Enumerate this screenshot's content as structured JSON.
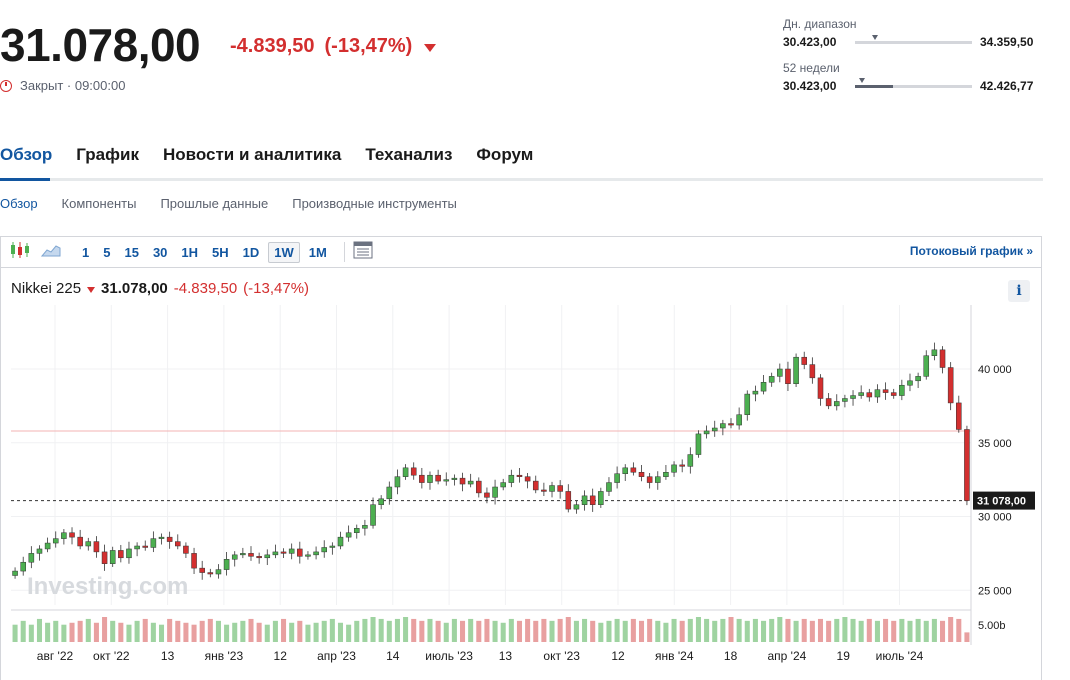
{
  "quote": {
    "price": "31.078,00",
    "change": "-4.839,50",
    "change_pct": "(-13,47%)",
    "status": "Закрыт · 09:00:00",
    "direction": "down",
    "color_down": "#d32f2f"
  },
  "ranges": {
    "day": {
      "label": "Дн. диапазон",
      "low": "30.423,00",
      "high": "34.359,50",
      "position": 0.07
    },
    "week52": {
      "label": "52 недели",
      "low": "30.423,00",
      "high": "42.426,77",
      "position": 0.05,
      "fill": 0.32
    }
  },
  "tabs": [
    "Обзор",
    "График",
    "Новости и аналитика",
    "Теханализ",
    "Форум"
  ],
  "active_tab": "Обзор",
  "subtabs": [
    "Обзор",
    "Компоненты",
    "Прошлые данные",
    "Производные инструменты"
  ],
  "toolbar": {
    "intervals": [
      "1",
      "5",
      "15",
      "30",
      "1H",
      "5H",
      "1D",
      "1W",
      "1M"
    ],
    "active_interval": "1W",
    "stream_label": "Потоковый график »",
    "icons": [
      "candlestick-icon",
      "area-chart-icon",
      "table-icon"
    ]
  },
  "legend": {
    "name": "Nikkei 225",
    "last": "31.078,00",
    "change": "-4.839,50",
    "change_pct": "(-13,47%)"
  },
  "info_label": "i",
  "watermark": "Investing.com",
  "chart_data": {
    "type": "candlestick",
    "title": "Nikkei 225",
    "interval": "1W",
    "ylim": [
      24000,
      44000
    ],
    "y_ticks": [
      "25 000",
      "30 000",
      "35 000",
      "40 000"
    ],
    "y_tick_values": [
      25000,
      30000,
      35000,
      40000
    ],
    "last_price_label": "31 078,00",
    "last_price": 31078,
    "reference_level": 35800,
    "volume_label": "5.00b",
    "x_ticks": [
      "авг '22",
      "окт '22",
      "13",
      "янв '23",
      "12",
      "апр '23",
      "14",
      "июль '23",
      "13",
      "окт '23",
      "12",
      "янв '24",
      "18",
      "апр '24",
      "19",
      "июль '24"
    ],
    "colors": {
      "up": "#4caf50",
      "down": "#d32f2f"
    },
    "close": [
      26300,
      26900,
      27500,
      27800,
      28200,
      28500,
      28900,
      28600,
      28000,
      28300,
      27600,
      26800,
      27700,
      27200,
      27800,
      28000,
      27900,
      28500,
      28600,
      28300,
      28000,
      27500,
      26500,
      26200,
      26100,
      26400,
      27100,
      27400,
      27500,
      27300,
      27200,
      27400,
      27600,
      27500,
      27800,
      27300,
      27400,
      27600,
      27900,
      28000,
      28600,
      28900,
      29200,
      29400,
      30800,
      31200,
      32000,
      32700,
      33300,
      32800,
      32300,
      32800,
      32400,
      32500,
      32600,
      32200,
      32400,
      31600,
      31300,
      32000,
      32300,
      32800,
      32700,
      32400,
      31800,
      31700,
      32100,
      31700,
      30500,
      30800,
      31400,
      30800,
      31700,
      32300,
      32900,
      33300,
      33000,
      32700,
      32300,
      32700,
      33000,
      33500,
      33400,
      34200,
      35600,
      35800,
      36000,
      36300,
      36200,
      36900,
      38300,
      38500,
      39100,
      39500,
      40000,
      39000,
      40800,
      40300,
      39400,
      38000,
      37500,
      37800,
      38000,
      38200,
      38400,
      38100,
      38600,
      38400,
      38200,
      38900,
      39200,
      39500,
      40900,
      41300,
      40100,
      37700,
      35900,
      31078
    ],
    "volume": [
      0.45,
      0.55,
      0.45,
      0.6,
      0.5,
      0.55,
      0.45,
      0.5,
      0.55,
      0.6,
      0.5,
      0.65,
      0.55,
      0.5,
      0.45,
      0.55,
      0.6,
      0.5,
      0.45,
      0.6,
      0.55,
      0.5,
      0.45,
      0.55,
      0.6,
      0.55,
      0.45,
      0.5,
      0.55,
      0.6,
      0.5,
      0.45,
      0.55,
      0.6,
      0.5,
      0.55,
      0.45,
      0.5,
      0.55,
      0.6,
      0.5,
      0.45,
      0.55,
      0.6,
      0.65,
      0.6,
      0.55,
      0.6,
      0.65,
      0.6,
      0.55,
      0.6,
      0.55,
      0.5,
      0.6,
      0.55,
      0.6,
      0.55,
      0.6,
      0.55,
      0.5,
      0.6,
      0.55,
      0.6,
      0.55,
      0.6,
      0.55,
      0.6,
      0.65,
      0.55,
      0.6,
      0.55,
      0.5,
      0.55,
      0.6,
      0.55,
      0.6,
      0.55,
      0.6,
      0.55,
      0.5,
      0.6,
      0.55,
      0.6,
      0.65,
      0.6,
      0.55,
      0.6,
      0.65,
      0.6,
      0.55,
      0.6,
      0.55,
      0.6,
      0.65,
      0.6,
      0.55,
      0.6,
      0.55,
      0.6,
      0.55,
      0.6,
      0.65,
      0.6,
      0.55,
      0.6,
      0.55,
      0.6,
      0.55,
      0.6,
      0.55,
      0.6,
      0.55,
      0.6,
      0.55,
      0.65,
      0.6,
      0.25
    ]
  }
}
